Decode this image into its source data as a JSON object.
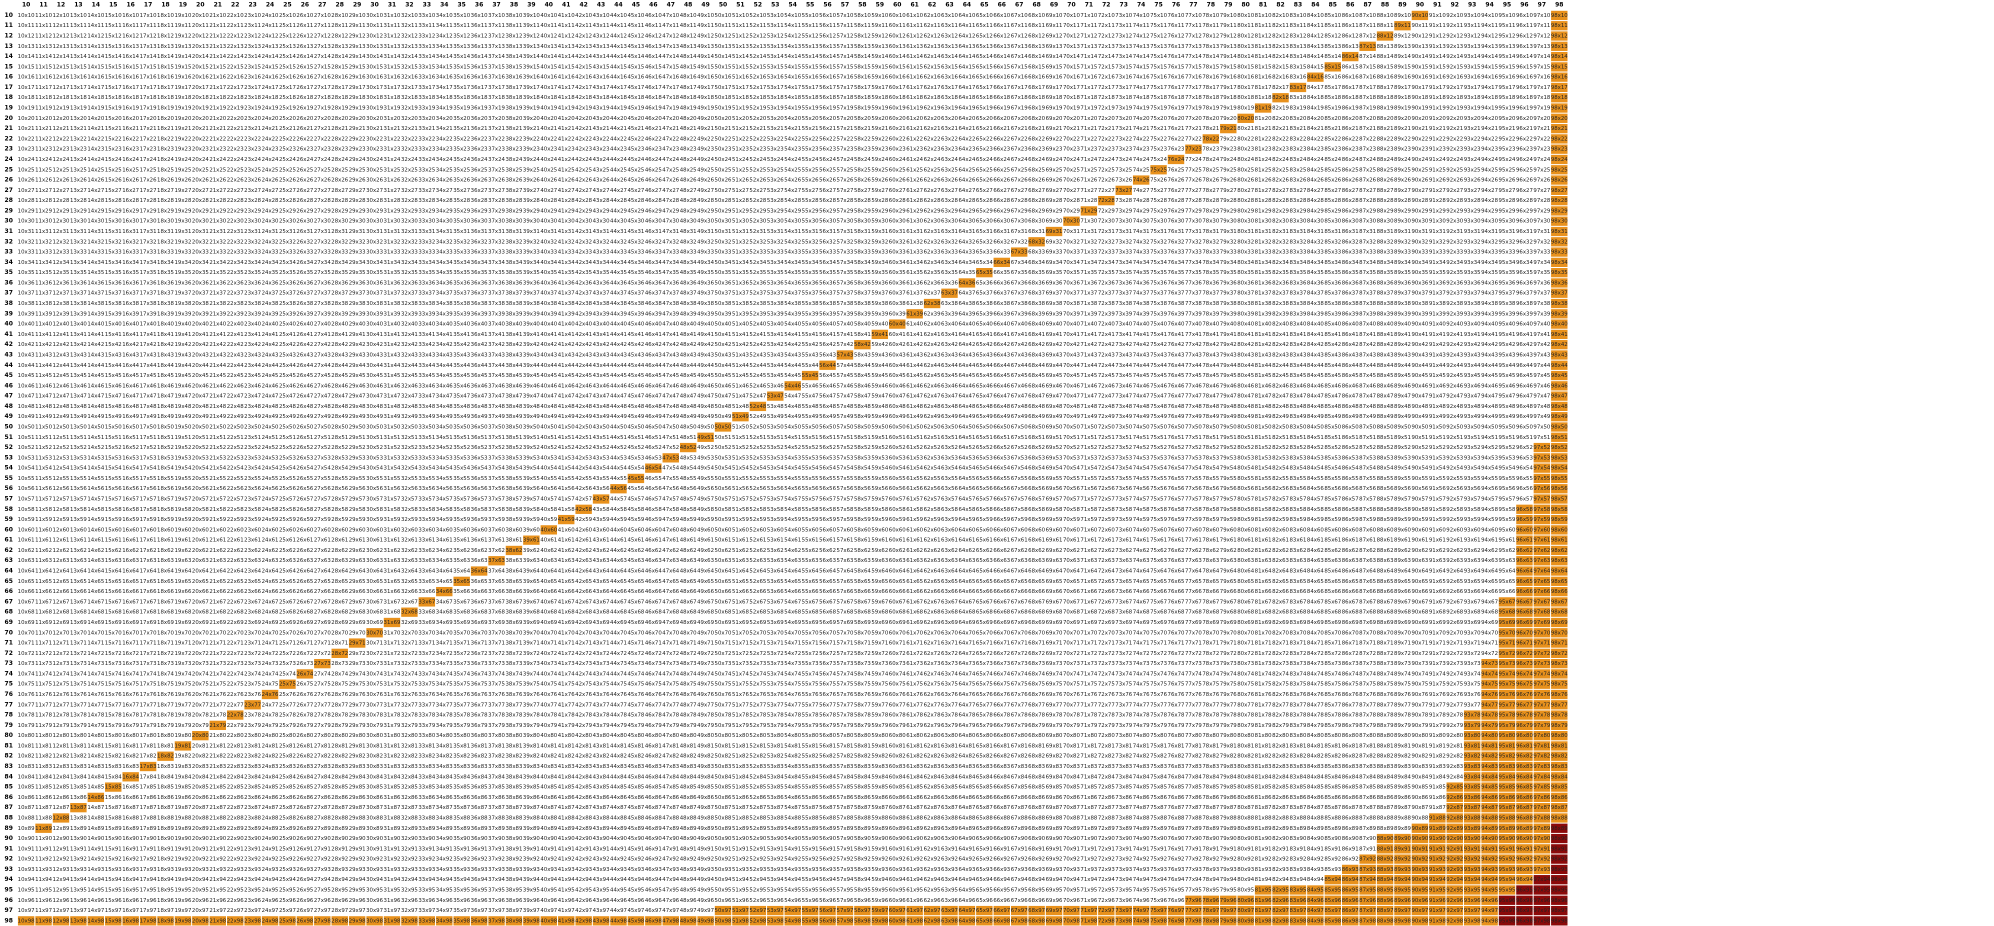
{
  "columns": [
    10,
    11,
    12,
    13,
    14,
    15,
    16,
    17,
    18,
    19,
    20,
    21,
    22,
    23,
    24,
    25,
    26,
    27,
    28,
    29,
    30,
    31,
    32,
    33,
    34,
    35,
    36,
    37,
    38,
    39,
    40,
    41,
    42,
    43,
    44,
    45,
    46,
    47,
    48,
    49,
    50,
    51,
    52,
    53,
    54,
    55,
    56,
    57,
    58,
    59,
    60,
    61,
    62,
    63,
    64,
    65,
    66,
    67,
    68,
    69,
    70,
    71,
    72,
    73,
    74,
    75,
    76,
    77,
    78,
    79,
    80,
    81,
    82,
    83,
    84,
    85,
    86,
    87,
    88,
    89,
    90,
    91,
    92,
    93,
    94,
    95,
    96,
    97,
    98
  ],
  "rows": [
    10,
    11,
    12,
    13,
    14,
    15,
    16,
    17,
    18,
    19,
    20,
    21,
    22,
    23,
    24,
    25,
    26,
    27,
    28,
    29,
    30,
    31,
    32,
    33,
    34,
    35,
    36,
    37,
    38,
    39,
    40,
    41,
    42,
    43,
    44,
    45,
    46,
    47,
    48,
    49,
    50,
    51,
    52,
    53,
    54,
    55,
    56,
    57,
    58,
    59,
    60,
    61,
    62,
    63,
    64,
    65,
    66,
    67,
    68,
    69,
    70,
    71,
    72,
    73,
    74,
    75,
    76,
    77,
    78,
    79,
    80,
    81,
    82,
    83,
    84,
    85,
    86,
    87,
    88,
    89,
    90,
    91,
    92,
    93,
    94,
    95,
    96,
    97,
    98
  ],
  "separator": "x",
  "diagonal_col": [
    90,
    89,
    88,
    87,
    86,
    85,
    84,
    83,
    82,
    81,
    80,
    79,
    78,
    77,
    76,
    75,
    74,
    73,
    72,
    71,
    70,
    69,
    68,
    67,
    66,
    65,
    64,
    63,
    62,
    61,
    60,
    59,
    58,
    57,
    56,
    55,
    54,
    53,
    52,
    51,
    50,
    49,
    48,
    47,
    46,
    45,
    44,
    43,
    42,
    41,
    40,
    39,
    38,
    37,
    36,
    35,
    34,
    33,
    32,
    31,
    30,
    29,
    28,
    27,
    26,
    25,
    24,
    23,
    22,
    21,
    20,
    19,
    18,
    17,
    16,
    15,
    14,
    13,
    12,
    11,
    null,
    null,
    null,
    null,
    null,
    null,
    null,
    null,
    null
  ],
  "highlight_from": [
    98,
    98,
    98,
    98,
    98,
    98,
    98,
    98,
    98,
    98,
    98,
    98,
    98,
    98,
    98,
    98,
    98,
    98,
    98,
    98,
    98,
    98,
    98,
    98,
    98,
    98,
    98,
    98,
    98,
    98,
    98,
    98,
    98,
    98,
    98,
    98,
    98,
    98,
    98,
    98,
    98,
    98,
    97,
    97,
    97,
    97,
    97,
    97,
    96,
    96,
    96,
    96,
    96,
    96,
    96,
    96,
    96,
    95,
    95,
    95,
    95,
    95,
    95,
    94,
    94,
    94,
    94,
    94,
    93,
    93,
    93,
    93,
    93,
    93,
    93,
    92,
    92,
    92,
    91,
    90,
    88,
    88,
    87,
    86,
    85,
    81,
    77,
    50,
    10
  ],
  "dark_from": [
    null,
    null,
    null,
    null,
    null,
    null,
    null,
    null,
    null,
    null,
    null,
    null,
    null,
    null,
    null,
    null,
    null,
    null,
    null,
    null,
    null,
    null,
    null,
    null,
    null,
    null,
    null,
    null,
    null,
    null,
    null,
    null,
    null,
    null,
    null,
    null,
    null,
    null,
    null,
    null,
    null,
    null,
    null,
    null,
    null,
    null,
    null,
    null,
    null,
    null,
    null,
    null,
    null,
    null,
    null,
    null,
    null,
    null,
    null,
    null,
    null,
    null,
    null,
    null,
    null,
    null,
    null,
    null,
    null,
    null,
    null,
    null,
    null,
    null,
    null,
    null,
    null,
    null,
    null,
    98,
    98,
    98,
    98,
    98,
    97,
    96,
    95,
    95,
    95
  ],
  "highlight_color": "#e8911c",
  "dark_color": "#8b0a0a"
}
